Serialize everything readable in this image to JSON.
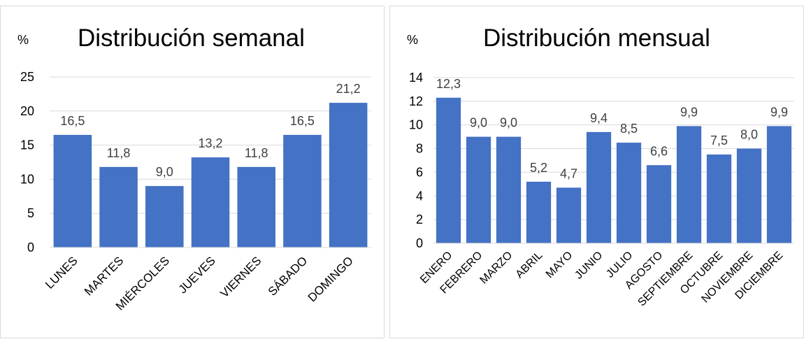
{
  "chart_data": [
    {
      "type": "bar",
      "title": "Distribución semanal",
      "unit": "%",
      "categories": [
        "LUNES",
        "MARTES",
        "MIÉRCOLES",
        "JUEVES",
        "VIERNES",
        "SÁBADO",
        "DOMINGO"
      ],
      "values": [
        16.5,
        11.8,
        9.0,
        13.2,
        11.8,
        16.5,
        21.2
      ],
      "value_labels": [
        "16,5",
        "11,8",
        "9,0",
        "13,2",
        "11,8",
        "16,5",
        "21,2"
      ],
      "ylim": [
        0,
        25
      ],
      "yticks": [
        0,
        5,
        10,
        15,
        20,
        25
      ],
      "grid": true,
      "bar_color": "#4472c4"
    },
    {
      "type": "bar",
      "title": "Distribución mensual",
      "unit": "%",
      "categories": [
        "ENERO",
        "FEBRERO",
        "MARZO",
        "ABRIL",
        "MAYO",
        "JUNIO",
        "JULIO",
        "AGOSTO",
        "SEPTIEMBRE",
        "OCTUBRE",
        "NOVIEMBRE",
        "DICIEMBRE"
      ],
      "values": [
        12.3,
        9.0,
        9.0,
        5.2,
        4.7,
        9.4,
        8.5,
        6.6,
        9.9,
        7.5,
        8.0,
        9.9
      ],
      "value_labels": [
        "12,3",
        "9,0",
        "9,0",
        "5,2",
        "4,7",
        "9,4",
        "8,5",
        "6,6",
        "9,9",
        "7,5",
        "8,0",
        "9,9"
      ],
      "ylim": [
        0,
        14
      ],
      "yticks": [
        0,
        2,
        4,
        6,
        8,
        10,
        12,
        14
      ],
      "grid": true,
      "bar_color": "#4472c4"
    }
  ]
}
